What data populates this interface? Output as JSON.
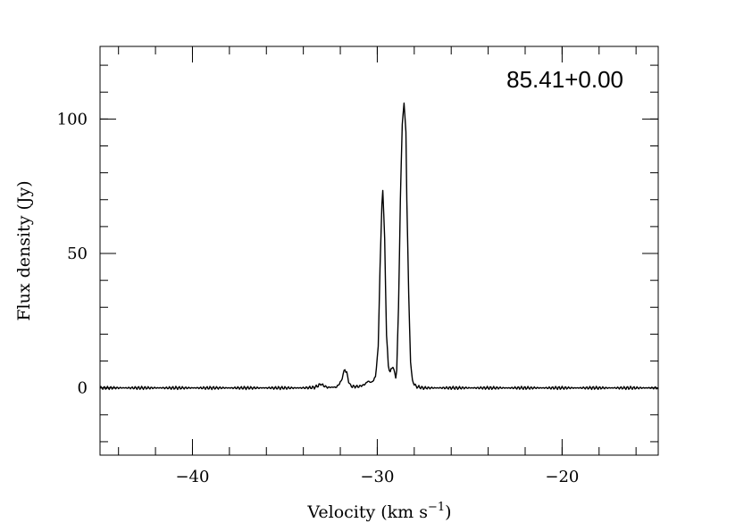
{
  "chart_data": {
    "type": "line",
    "annotation": "85.41+0.00",
    "xlabel": "Velocity (km s",
    "xlabel_sup": "−1",
    "xlabel_suffix": ")",
    "ylabel": "Flux density (Jy)",
    "xlim": [
      -45,
      -14.8
    ],
    "ylim": [
      -25,
      127
    ],
    "x_ticks": [
      {
        "value": -40,
        "label": "−40"
      },
      {
        "value": -30,
        "label": "−30"
      },
      {
        "value": -20,
        "label": "−20"
      }
    ],
    "y_ticks": [
      {
        "value": 0,
        "label": "0"
      },
      {
        "value": 50,
        "label": "50"
      },
      {
        "value": 100,
        "label": "100"
      }
    ],
    "x_minor_step": 2,
    "y_minor_step": 10,
    "grid": false,
    "series": [
      {
        "x": [
          -45.0,
          -40.0,
          -34.0,
          -33.4,
          -33.2,
          -33.05,
          -32.9,
          -32.7,
          -32.2,
          -31.95,
          -31.85,
          -31.75,
          -31.65,
          -31.55,
          -31.45,
          -31.3,
          -31.0,
          -30.7,
          -30.5,
          -30.3,
          -30.1,
          -29.95,
          -29.85,
          -29.75,
          -29.7,
          -29.6,
          -29.5,
          -29.4,
          -29.3,
          -29.2,
          -29.15,
          -29.1,
          -29.0,
          -28.95,
          -28.85,
          -28.75,
          -28.65,
          -28.55,
          -28.45,
          -28.4,
          -28.3,
          -28.2,
          -28.1,
          -27.9,
          -27.5,
          -25.0,
          -20.0,
          -14.8
        ],
        "y": [
          0,
          0,
          0,
          0.2,
          0.8,
          1.5,
          0.8,
          0.2,
          0.3,
          2.5,
          5.0,
          7.0,
          5.5,
          2.5,
          0.8,
          0.5,
          0.5,
          1.2,
          2.5,
          2.0,
          4.0,
          15.0,
          45.0,
          68.0,
          74.0,
          55.0,
          20.0,
          8.0,
          6.0,
          7.5,
          8.0,
          6.5,
          4.0,
          6.5,
          30.0,
          70.0,
          98.0,
          106.0,
          95.0,
          70.0,
          35.0,
          10.0,
          2.5,
          0.5,
          0,
          0,
          0,
          0
        ]
      }
    ]
  }
}
